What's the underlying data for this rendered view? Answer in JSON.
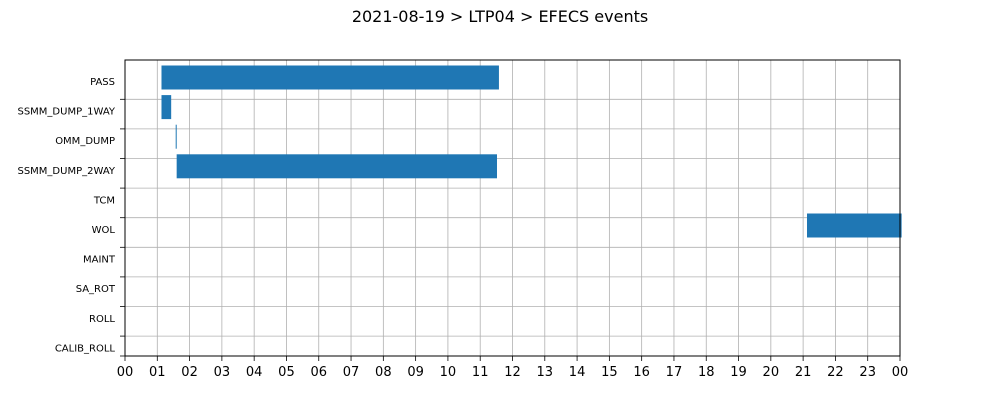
{
  "chart_data": {
    "type": "bar",
    "orientation": "horizontal",
    "title": "2021-08-19 > LTP04 > EFECS events",
    "xlabel": "",
    "ylabel": "",
    "categories": [
      "PASS",
      "SSMM_DUMP_1WAY",
      "OMM_DUMP",
      "SSMM_DUMP_2WAY",
      "TCM",
      "WOL",
      "MAINT",
      "SA_ROT",
      "ROLL",
      "CALIB_ROLL"
    ],
    "x_ticks": [
      "00",
      "01",
      "02",
      "03",
      "04",
      "05",
      "06",
      "07",
      "08",
      "09",
      "10",
      "11",
      "12",
      "13",
      "14",
      "15",
      "16",
      "17",
      "18",
      "19",
      "20",
      "21",
      "22",
      "23",
      "00"
    ],
    "xlim": [
      0,
      24
    ],
    "grid": true,
    "bar_color": "#1f77b4",
    "events": [
      {
        "category": "PASS",
        "start": 0.13,
        "end": 10.58
      },
      {
        "category": "SSMM_DUMP_1WAY",
        "start": 0.13,
        "end": 0.43
      },
      {
        "category": "OMM_DUMP",
        "start": 0.57,
        "end": 0.6
      },
      {
        "category": "SSMM_DUMP_2WAY",
        "start": 0.6,
        "end": 10.52
      },
      {
        "category": "WOL",
        "start": 20.12,
        "end": 23.05
      }
    ]
  }
}
